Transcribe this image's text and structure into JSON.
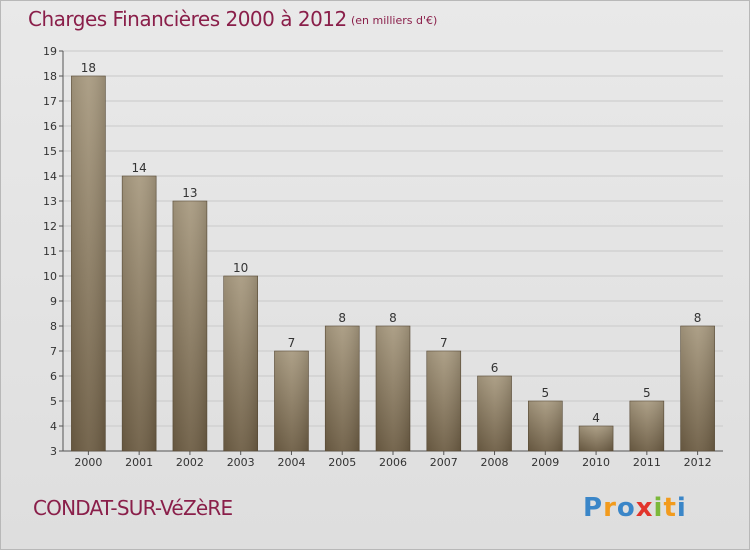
{
  "header": {
    "title": "Charges Financières 2000 à 2012",
    "subtitle": "(en milliers d'€)"
  },
  "footer": {
    "commune": "CONDAT-SUR-VéZèRE",
    "logo_text": "Proxiti"
  },
  "colors": {
    "title": "#8a1f4a",
    "bar_top": "#a89a80",
    "bar_bottom": "#6d5d44",
    "grid": "#c9c9c9"
  },
  "chart_data": {
    "type": "bar",
    "title": "Charges Financières 2000 à 2012",
    "subtitle": "(en milliers d'€)",
    "categories": [
      "2000",
      "2001",
      "2002",
      "2003",
      "2004",
      "2005",
      "2006",
      "2007",
      "2008",
      "2009",
      "2010",
      "2011",
      "2012"
    ],
    "values": [
      18,
      14,
      13,
      10,
      7,
      8,
      8,
      7,
      6,
      5,
      4,
      5,
      8
    ],
    "ylim": [
      3,
      19
    ],
    "yticks": [
      3,
      4,
      5,
      6,
      7,
      8,
      9,
      10,
      11,
      12,
      13,
      14,
      15,
      16,
      17,
      18,
      19
    ],
    "xlabel": "",
    "ylabel": "",
    "grid": true,
    "legend": "none"
  }
}
